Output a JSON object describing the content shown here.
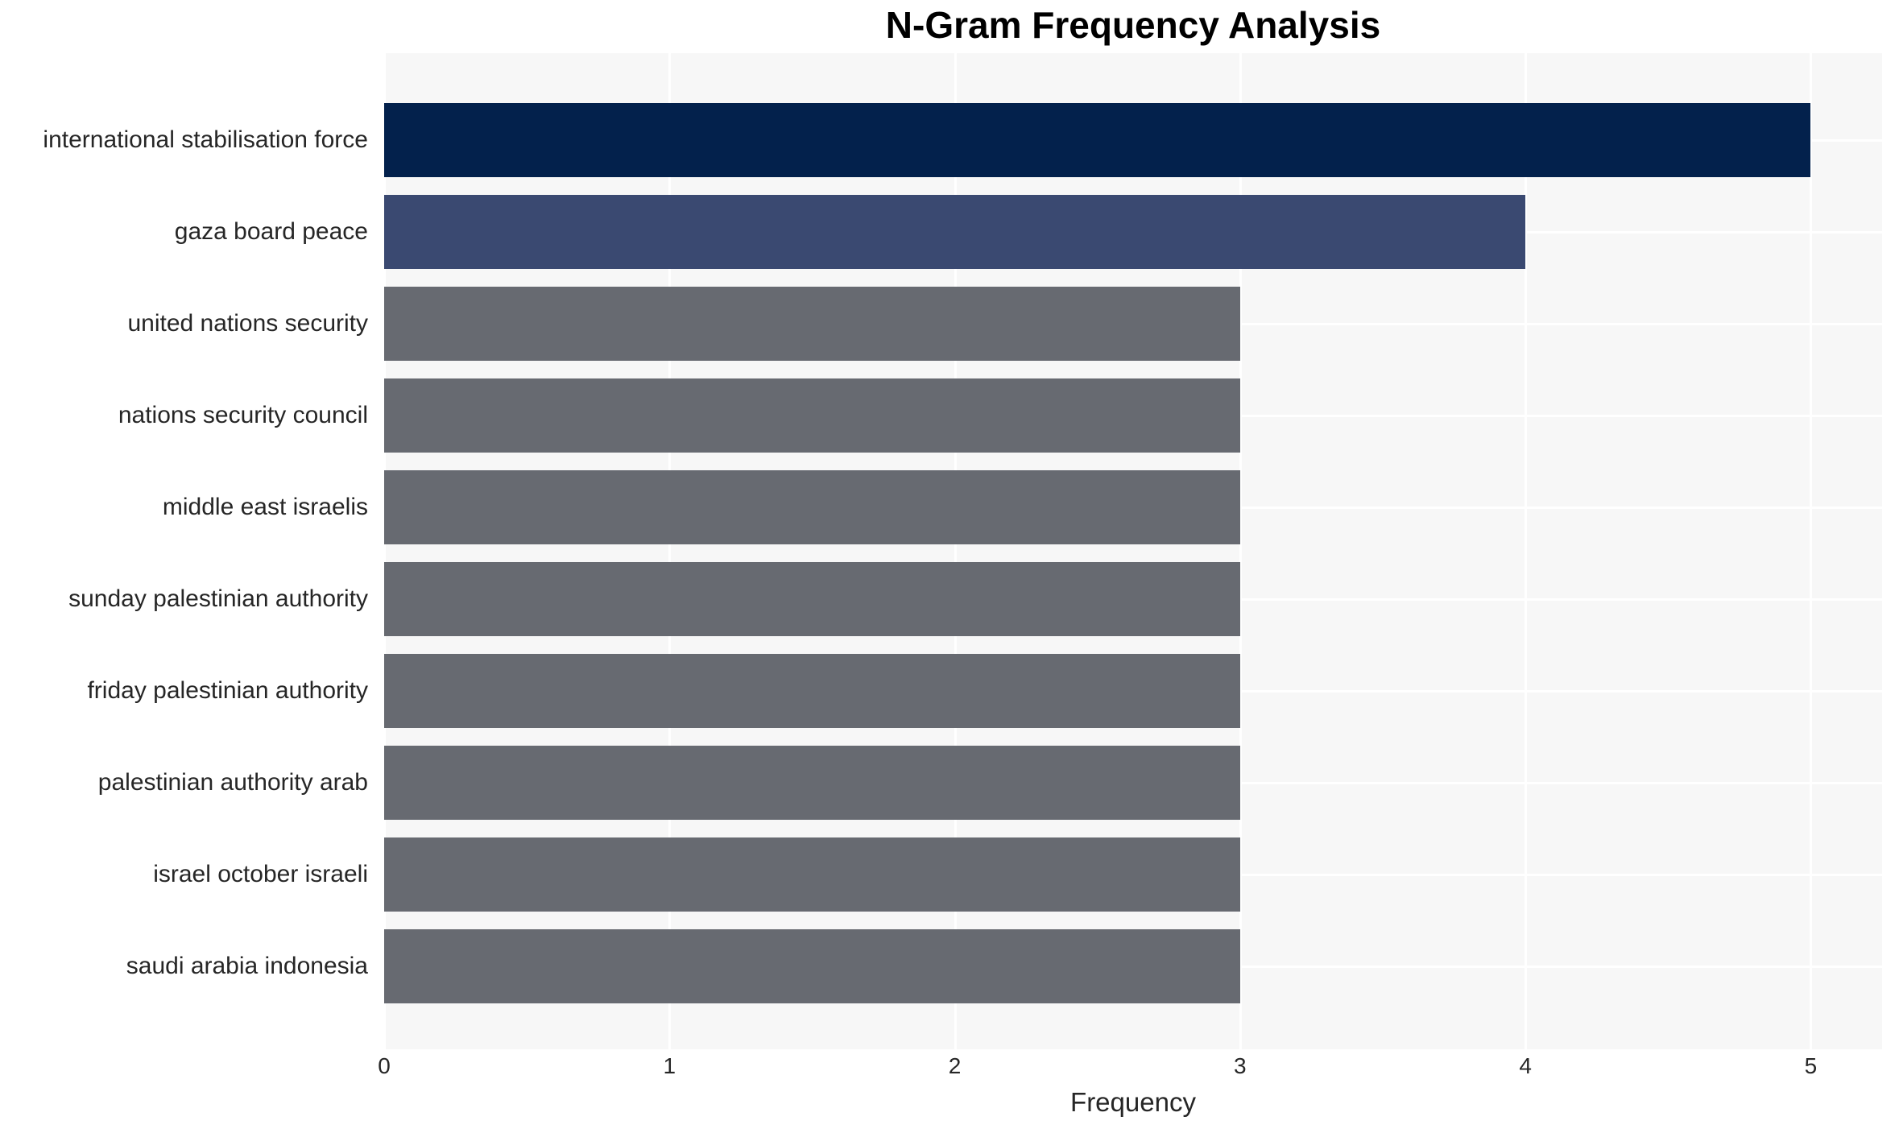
{
  "chart_data": {
    "type": "bar",
    "orientation": "horizontal",
    "title": "N-Gram Frequency Analysis",
    "xlabel": "Frequency",
    "ylabel": "",
    "categories": [
      "international stabilisation force",
      "gaza board peace",
      "united nations security",
      "nations security council",
      "middle east israelis",
      "sunday palestinian authority",
      "friday palestinian authority",
      "palestinian authority arab",
      "israel october israeli",
      "saudi arabia indonesia"
    ],
    "values": [
      5,
      4,
      3,
      3,
      3,
      3,
      3,
      3,
      3,
      3
    ],
    "bar_colors": [
      "#03214c",
      "#3a4971",
      "#676a71",
      "#676a71",
      "#676a71",
      "#676a71",
      "#676a71",
      "#676a71",
      "#676a71",
      "#676a71"
    ],
    "xticks": [
      0,
      1,
      2,
      3,
      4,
      5
    ],
    "xtick_labels": [
      "0",
      "1",
      "2",
      "3",
      "4",
      "5"
    ],
    "xlim": [
      0,
      5.25
    ],
    "grid": true,
    "legend": false,
    "plot_bg_color": "#f7f7f7",
    "grid_color": "#ffffff",
    "text_color": "#262626"
  }
}
